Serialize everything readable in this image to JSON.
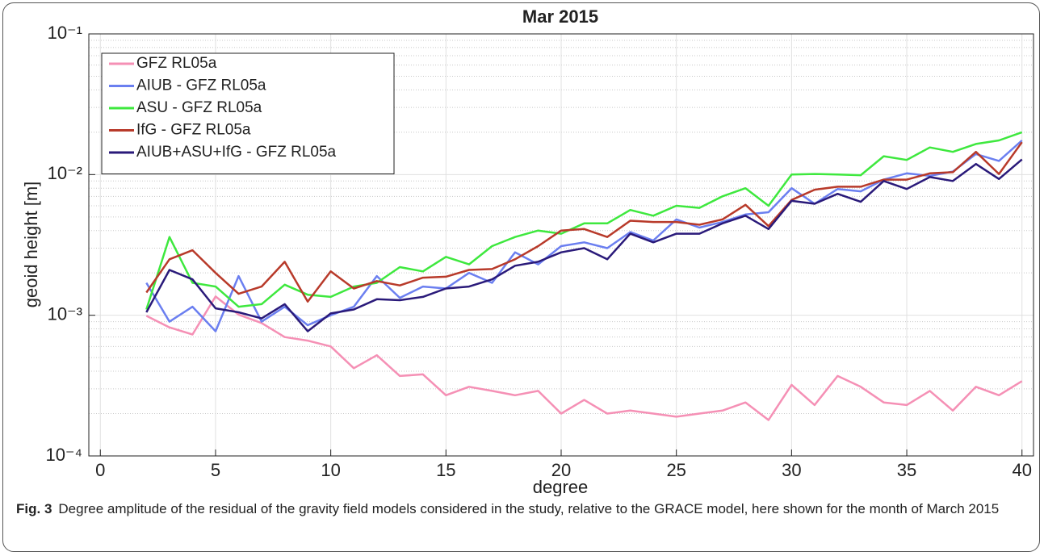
{
  "chart_data": {
    "type": "line",
    "title": "Mar 2015",
    "x_label": "degree",
    "y_label": "geoid height [m]",
    "y_scale": "log",
    "grid": true,
    "minor_grid": true,
    "legend": "upper-left",
    "x": [
      2,
      3,
      4,
      5,
      6,
      7,
      8,
      9,
      10,
      11,
      12,
      13,
      14,
      15,
      16,
      17,
      18,
      19,
      20,
      21,
      22,
      23,
      24,
      25,
      26,
      27,
      28,
      29,
      30,
      31,
      32,
      33,
      34,
      35,
      36,
      37,
      38,
      39,
      40
    ],
    "xlim": [
      -0.5,
      40.5
    ],
    "xticks": [
      0,
      5,
      10,
      15,
      20,
      25,
      30,
      35,
      40
    ],
    "ylim": [
      0.0001,
      0.1
    ],
    "yticks": [
      {
        "value": 0.0001,
        "label": "10⁻⁴"
      },
      {
        "value": 0.001,
        "label": "10⁻³"
      },
      {
        "value": 0.01,
        "label": "10⁻²"
      },
      {
        "value": 0.1,
        "label": "10⁻¹"
      }
    ],
    "series": [
      {
        "name": "GFZ RL05a",
        "color": "#f590b5",
        "values": [
          0.00099,
          0.00082,
          0.00073,
          0.00136,
          0.00101,
          0.00088,
          0.0007,
          0.00066,
          0.0006,
          0.00042,
          0.00052,
          0.00037,
          0.00038,
          0.00027,
          0.00031,
          0.00029,
          0.00027,
          0.00029,
          0.0002,
          0.00025,
          0.0002,
          0.00021,
          0.0002,
          0.00019,
          0.0002,
          0.00021,
          0.00024,
          0.00018,
          0.00032,
          0.00023,
          0.00037,
          0.00031,
          0.00024,
          0.00023,
          0.00029,
          0.00021,
          0.00031,
          0.00027,
          0.00034
        ]
      },
      {
        "name": "AIUB - GFZ RL05a",
        "color": "#6b7ff0",
        "values": [
          0.0017,
          0.0009,
          0.00115,
          0.00077,
          0.0019,
          0.0009,
          0.00115,
          0.00085,
          0.001,
          0.00115,
          0.0019,
          0.00133,
          0.0016,
          0.00155,
          0.002,
          0.0017,
          0.0028,
          0.0023,
          0.0031,
          0.0033,
          0.003,
          0.0039,
          0.0034,
          0.0048,
          0.0042,
          0.0046,
          0.0052,
          0.0054,
          0.008,
          0.0062,
          0.0079,
          0.0076,
          0.0092,
          0.0102,
          0.0098,
          0.0105,
          0.014,
          0.0125,
          0.0175
        ]
      },
      {
        "name": "ASU - GFZ RL05a",
        "color": "#3ee83e",
        "values": [
          0.0011,
          0.0036,
          0.0017,
          0.0016,
          0.00115,
          0.0012,
          0.00165,
          0.0014,
          0.00135,
          0.0016,
          0.0017,
          0.0022,
          0.00205,
          0.0026,
          0.0023,
          0.0031,
          0.0036,
          0.004,
          0.0038,
          0.0045,
          0.0045,
          0.0056,
          0.0051,
          0.006,
          0.0058,
          0.007,
          0.008,
          0.006,
          0.01,
          0.0101,
          0.01,
          0.0099,
          0.0135,
          0.0127,
          0.0156,
          0.0145,
          0.0165,
          0.0175,
          0.02
        ]
      },
      {
        "name": "IfG - GFZ RL05a",
        "color": "#b83a2a",
        "values": [
          0.00145,
          0.0025,
          0.0029,
          0.002,
          0.00142,
          0.0016,
          0.0024,
          0.00125,
          0.00205,
          0.00155,
          0.00175,
          0.00163,
          0.00185,
          0.00188,
          0.0021,
          0.00213,
          0.0025,
          0.0031,
          0.004,
          0.0041,
          0.0036,
          0.0047,
          0.0046,
          0.0046,
          0.0044,
          0.0048,
          0.0061,
          0.0043,
          0.0066,
          0.0078,
          0.0082,
          0.0082,
          0.0092,
          0.0092,
          0.0102,
          0.0104,
          0.0145,
          0.0101,
          0.017
        ]
      },
      {
        "name": "AIUB+ASU+IfG - GFZ RL05a",
        "color": "#2a1a7a",
        "values": [
          0.00105,
          0.0021,
          0.0018,
          0.00112,
          0.00105,
          0.00095,
          0.0012,
          0.00077,
          0.00103,
          0.0011,
          0.0013,
          0.00128,
          0.00135,
          0.00155,
          0.0016,
          0.0018,
          0.00225,
          0.0024,
          0.0028,
          0.003,
          0.0025,
          0.0038,
          0.0033,
          0.0038,
          0.0038,
          0.0045,
          0.0051,
          0.0041,
          0.0065,
          0.0062,
          0.0073,
          0.0064,
          0.009,
          0.0079,
          0.0096,
          0.009,
          0.0119,
          0.0093,
          0.0128
        ]
      }
    ]
  },
  "caption": {
    "label": "Fig. 3",
    "text": "Degree amplitude of the residual of the gravity field models considered in the study, relative to the GRACE model, here shown for the month of March 2015"
  }
}
